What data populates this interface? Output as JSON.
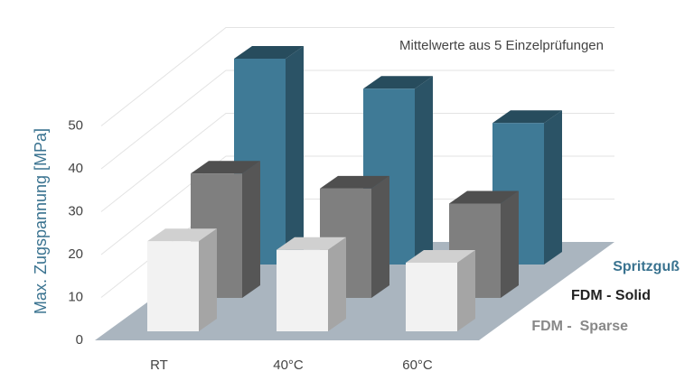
{
  "chart_data": {
    "type": "bar3d",
    "annotation": "Mittelwerte aus 5 Einzelprüfungen",
    "y_label": "Max. Zugspannung [MPa]",
    "categories": [
      "RT",
      "40°C",
      "60°C"
    ],
    "series": [
      {
        "name": "Spritzguß",
        "color": "#3f7a96",
        "values": [
          48,
          41,
          33
        ]
      },
      {
        "name": "FDM - Solid",
        "color": "#7f7f7f",
        "values": [
          29,
          25.5,
          22
        ]
      },
      {
        "name": "FDM -  Sparse",
        "color": "#f2f2f2",
        "values": [
          21,
          19,
          16
        ]
      }
    ],
    "ylim": [
      0,
      60
    ],
    "yticks": [
      0,
      10,
      20,
      30,
      40,
      50
    ],
    "grid": true
  }
}
